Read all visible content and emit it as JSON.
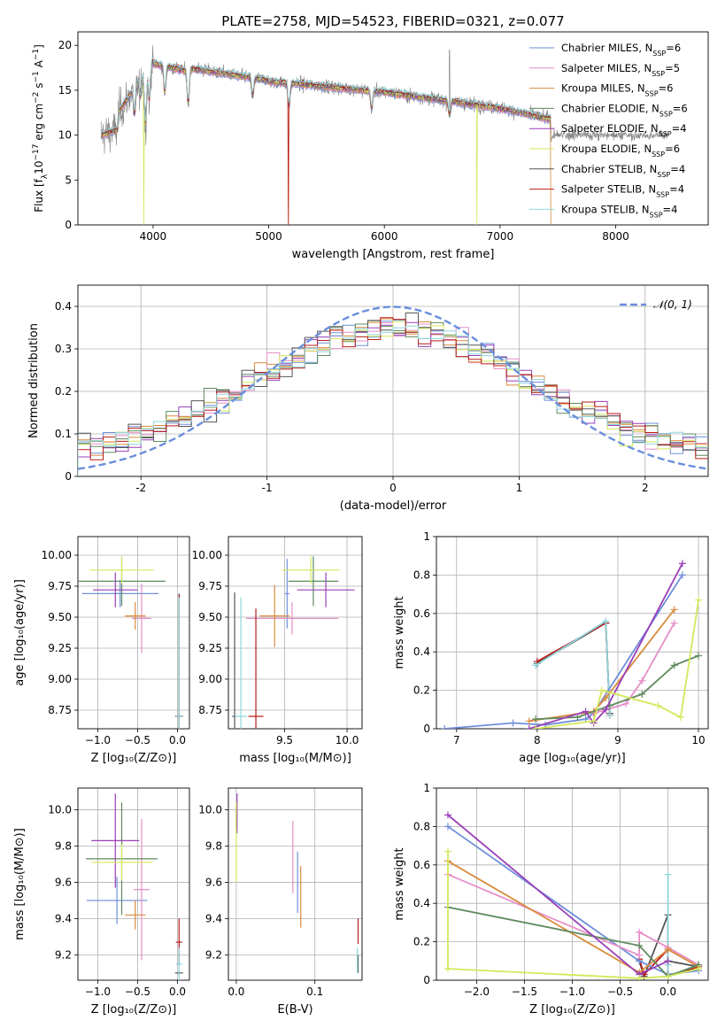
{
  "figure_title": "PLATE=2758, MJD=54523, FIBERID=0321, z=0.077",
  "series": [
    {
      "name": "Chabrier MILES",
      "nssp": "6",
      "color": "#6f8fd9"
    },
    {
      "name": "Salpeter MILES",
      "nssp": "5",
      "color": "#e68fc8"
    },
    {
      "name": "Kroupa MILES",
      "nssp": "6",
      "color": "#d98a3c"
    },
    {
      "name": "Chabrier ELODIE",
      "nssp": "6",
      "color": "#5f8a5f"
    },
    {
      "name": "Salpeter ELODIE",
      "nssp": "4",
      "color": "#9a3fb8"
    },
    {
      "name": "Kroupa ELODIE",
      "nssp": "6",
      "color": "#d4e85a"
    },
    {
      "name": "Chabrier STELIB",
      "nssp": "4",
      "color": "#555555"
    },
    {
      "name": "Salpeter STELIB",
      "nssp": "4",
      "color": "#b81c1c"
    },
    {
      "name": "Kroupa STELIB",
      "nssp": "4",
      "color": "#8fd6dc"
    }
  ],
  "chart_data": [
    {
      "id": "spectrum",
      "type": "line",
      "xlabel": "wavelength [Angstrom, rest frame]",
      "ylabel_main": "Flux [f",
      "ylabel_sub": "λ",
      "ylabel_rest": "10",
      "ylabel_exp": "−17",
      "ylabel_tail": " erg cm",
      "ylabel_exp2": "−2",
      "ylabel_s": " s",
      "ylabel_exp3": "−1",
      "ylabel_A": " A",
      "ylabel_exp4": "−1",
      "ylabel_end": "]",
      "xlim": [
        3350,
        8800
      ],
      "ylim": [
        0,
        21.5
      ],
      "xticks": [
        4000,
        5000,
        6000,
        7000,
        8000
      ],
      "yticks": [
        0,
        5,
        10,
        15,
        20
      ],
      "observed_range": [
        3550,
        8450
      ],
      "model_range": [
        3550,
        7440
      ],
      "legend_loc": "upper right"
    },
    {
      "id": "residuals",
      "type": "histogram",
      "xlabel": "(data-model)/error",
      "ylabel": "Normed distribution",
      "xlim": [
        -2.5,
        2.5
      ],
      "ylim": [
        0,
        0.45
      ],
      "xticks": [
        -2,
        -1,
        0,
        1,
        2
      ],
      "yticks": [
        0.0,
        0.1,
        0.2,
        0.3,
        0.4
      ],
      "bin_width": 0.1,
      "reference_label": "𝒩(0, 1)",
      "reference_color": "#6a8fdd",
      "grid": true
    },
    {
      "id": "age_vs_Z",
      "type": "scatter_errorbar",
      "xlabel": "Z [log₁₀(Z/Z⊙)]",
      "ylabel": "age  [log₁₀(age/yr)]",
      "xlim": [
        -1.25,
        0.15
      ],
      "ylim": [
        8.6,
        10.15
      ],
      "xticks": [
        -1.0,
        -0.5,
        0.0
      ],
      "xticklabels": [
        "−1.0",
        "−0.5",
        "0.0"
      ],
      "yticks": [
        8.75,
        9.0,
        9.25,
        9.5,
        9.75,
        10.0
      ],
      "yticklabels": [
        "8.75",
        "9.00",
        "9.25",
        "9.50",
        "9.75",
        "10.00"
      ],
      "points": [
        {
          "series": 0,
          "x": -0.72,
          "y": 9.69,
          "xerr": 0.48,
          "yerr": 0.11
        },
        {
          "series": 1,
          "x": -0.45,
          "y": 9.49,
          "xerr": 0.12,
          "yerr": 0.28
        },
        {
          "series": 2,
          "x": -0.53,
          "y": 9.51,
          "xerr": 0.13,
          "yerr": 0.11
        },
        {
          "series": 3,
          "x": -0.7,
          "y": 9.79,
          "xerr": 0.55,
          "yerr": 0.2
        },
        {
          "series": 4,
          "x": -0.78,
          "y": 9.72,
          "xerr": 0.28,
          "yerr": 0.14
        },
        {
          "series": 5,
          "x": -0.7,
          "y": 9.88,
          "xerr": 0.4,
          "yerr": 0.11
        },
        {
          "series": 6,
          "x": 0.02,
          "y": 8.7,
          "xerr": 0.05,
          "yerr": 0.99
        },
        {
          "series": 7,
          "x": 0.02,
          "y": 8.7,
          "xerr": 0.03,
          "yerr": 0.98
        },
        {
          "series": 8,
          "x": 0.02,
          "y": 8.7,
          "xerr": 0.04,
          "yerr": 0.96
        }
      ]
    },
    {
      "id": "age_vs_mass",
      "type": "scatter_errorbar",
      "xlabel": "mass [log₁₀(M/M⊙)]",
      "ylabel": "",
      "xlim": [
        9.05,
        10.12
      ],
      "ylim": [
        8.6,
        10.15
      ],
      "xticks": [
        9.5,
        10.0
      ],
      "xticklabels": [
        "9.5",
        "10.0"
      ],
      "yticks": [
        8.75,
        9.0,
        9.25,
        9.5,
        9.75,
        10.0
      ],
      "yticklabels": [
        "8.75",
        "9.00",
        "9.25",
        "9.50",
        "9.75",
        "10.00"
      ],
      "points": [
        {
          "series": 0,
          "x": 9.52,
          "y": 9.69,
          "xerr": 0.02,
          "yerr": 0.28
        },
        {
          "series": 1,
          "x": 9.56,
          "y": 9.49,
          "xerr": 0.37,
          "yerr": 0.13
        },
        {
          "series": 2,
          "x": 9.42,
          "y": 9.51,
          "xerr": 0.12,
          "yerr": 0.25
        },
        {
          "series": 3,
          "x": 9.73,
          "y": 9.79,
          "xerr": 0.2,
          "yerr": 0.2
        },
        {
          "series": 4,
          "x": 9.83,
          "y": 9.72,
          "xerr": 0.23,
          "yerr": 0.14
        },
        {
          "series": 5,
          "x": 9.71,
          "y": 9.88,
          "xerr": 0.23,
          "yerr": 0.11
        },
        {
          "series": 6,
          "x": 9.1,
          "y": 8.7,
          "xerr": 0.02,
          "yerr": 1.0
        },
        {
          "series": 7,
          "x": 9.27,
          "y": 8.7,
          "xerr": 0.06,
          "yerr": 0.87
        },
        {
          "series": 8,
          "x": 9.15,
          "y": 8.7,
          "xerr": 0.05,
          "yerr": 0.96
        }
      ]
    },
    {
      "id": "weight_vs_age",
      "type": "line",
      "xlabel": "age  [log₁₀(age/yr)]",
      "ylabel": "mass weight",
      "xlim": [
        6.75,
        10.12
      ],
      "ylim": [
        0,
        1.0
      ],
      "xticks": [
        7,
        8,
        9,
        10
      ],
      "yticks": [
        0.0,
        0.2,
        0.4,
        0.6,
        0.8,
        1.0
      ],
      "lines": [
        {
          "series": 6,
          "x": [
            8.0,
            8.85,
            8.9
          ],
          "y": [
            0.34,
            0.55,
            0.08
          ]
        },
        {
          "series": 7,
          "x": [
            8.0,
            8.85,
            8.9
          ],
          "y": [
            0.35,
            0.55,
            0.07
          ]
        },
        {
          "series": 8,
          "x": [
            7.98,
            8.85,
            8.9
          ],
          "y": [
            0.33,
            0.56,
            0.07
          ]
        },
        {
          "series": 0,
          "x": [
            6.85,
            7.7,
            8.1,
            8.6,
            8.7,
            9.8
          ],
          "y": [
            0.0,
            0.03,
            0.02,
            0.05,
            0.08,
            0.8
          ]
        },
        {
          "series": 1,
          "x": [
            8.7,
            9.1,
            9.3,
            9.7
          ],
          "y": [
            0.08,
            0.13,
            0.25,
            0.55
          ]
        },
        {
          "series": 2,
          "x": [
            7.9,
            8.7,
            8.85,
            9.7
          ],
          "y": [
            0.04,
            0.09,
            0.16,
            0.62
          ]
        },
        {
          "series": 3,
          "x": [
            7.98,
            8.5,
            8.9,
            9.3,
            9.7,
            10.0
          ],
          "y": [
            0.05,
            0.06,
            0.12,
            0.18,
            0.33,
            0.38
          ]
        },
        {
          "series": 4,
          "x": [
            7.9,
            8.6,
            8.7,
            8.85,
            9.8
          ],
          "y": [
            0.0,
            0.09,
            0.03,
            0.1,
            0.86
          ]
        },
        {
          "series": 5,
          "x": [
            7.98,
            8.7,
            8.8,
            9.5,
            9.78,
            10.0
          ],
          "y": [
            0.0,
            0.04,
            0.2,
            0.12,
            0.06,
            0.67
          ]
        }
      ]
    },
    {
      "id": "mass_vs_Z",
      "type": "scatter_errorbar",
      "xlabel": "Z [log₁₀(Z/Z⊙)]",
      "ylabel": "mass [log₁₀(M/M⊙)]",
      "xlim": [
        -1.25,
        0.15
      ],
      "ylim": [
        9.06,
        10.12
      ],
      "xticks": [
        -1.0,
        -0.5,
        0.0
      ],
      "xticklabels": [
        "−1.0",
        "−0.5",
        "0.0"
      ],
      "yticks": [
        9.2,
        9.4,
        9.6,
        9.8,
        10.0
      ],
      "yticklabels": [
        "9.2",
        "9.4",
        "9.6",
        "9.8",
        "10.0"
      ],
      "points": [
        {
          "series": 0,
          "x": -0.76,
          "y": 9.5,
          "xerr": 0.38,
          "yerr": 0.13
        },
        {
          "series": 1,
          "x": -0.45,
          "y": 9.56,
          "xerr": 0.1,
          "yerr": 0.39
        },
        {
          "series": 2,
          "x": -0.53,
          "y": 9.42,
          "xerr": 0.13,
          "yerr": 0.08
        },
        {
          "series": 3,
          "x": -0.7,
          "y": 9.73,
          "xerr": 0.45,
          "yerr": 0.31
        },
        {
          "series": 4,
          "x": -0.78,
          "y": 9.83,
          "xerr": 0.3,
          "yerr": 0.26
        },
        {
          "series": 5,
          "x": -0.7,
          "y": 9.71,
          "xerr": 0.38,
          "yerr": 0.1
        },
        {
          "series": 6,
          "x": 0.02,
          "y": 9.1,
          "xerr": 0.05,
          "yerr": 0.01
        },
        {
          "series": 7,
          "x": 0.02,
          "y": 9.27,
          "xerr": 0.04,
          "yerr": 0.13
        },
        {
          "series": 8,
          "x": 0.02,
          "y": 9.15,
          "xerr": 0.04,
          "yerr": 0.09
        }
      ]
    },
    {
      "id": "mass_vs_ebv",
      "type": "scatter_errorbar",
      "xlabel": "E(B-V)",
      "ylabel": "",
      "xlim": [
        -0.01,
        0.16
      ],
      "ylim": [
        9.06,
        10.12
      ],
      "xticks": [
        0.0,
        0.1
      ],
      "xticklabels": [
        "0.0",
        "0.1"
      ],
      "yticks": [
        9.2,
        9.4,
        9.6,
        9.8,
        10.0
      ],
      "yticklabels": [
        "9.2",
        "9.4",
        "9.6",
        "9.8",
        "10.0"
      ],
      "points": [
        {
          "series": 0,
          "x": 0.078,
          "y": 9.6,
          "xerr": 0.0,
          "yerr": 0.17
        },
        {
          "series": 1,
          "x": 0.072,
          "y": 9.74,
          "xerr": 0.0,
          "yerr": 0.2
        },
        {
          "series": 2,
          "x": 0.082,
          "y": 9.52,
          "xerr": 0.0,
          "yerr": 0.17
        },
        {
          "series": 3,
          "x": 0.0,
          "y": 9.95,
          "xerr": 0.0,
          "yerr": 0.06
        },
        {
          "series": 4,
          "x": 0.001,
          "y": 9.98,
          "xerr": 0.0,
          "yerr": 0.11
        },
        {
          "series": 5,
          "x": 0.0,
          "y": 9.82,
          "xerr": 0.0,
          "yerr": 0.22
        },
        {
          "series": 6,
          "x": 0.155,
          "y": 9.15,
          "xerr": 0.0,
          "yerr": 0.05
        },
        {
          "series": 7,
          "x": 0.155,
          "y": 9.33,
          "xerr": 0.0,
          "yerr": 0.07
        },
        {
          "series": 8,
          "x": 0.154,
          "y": 9.17,
          "xerr": 0.0,
          "yerr": 0.07
        }
      ]
    },
    {
      "id": "weight_vs_Z",
      "type": "line",
      "xlabel": "Z [log₁₀(Z/Z⊙)]",
      "ylabel": "mass weight",
      "xlim": [
        -2.42,
        0.42
      ],
      "ylim": [
        0,
        1.0
      ],
      "xticks": [
        -2.0,
        -1.5,
        -1.0,
        -0.5,
        0.0
      ],
      "xticklabels": [
        "−2.0",
        "−1.5",
        "−1.0",
        "−0.5",
        "0.0"
      ],
      "yticks": [
        0.0,
        0.2,
        0.4,
        0.6,
        0.8,
        1.0
      ],
      "lines": [
        {
          "series": 6,
          "x": [
            -0.3,
            -0.25,
            0.0,
            0.0,
            0.32
          ],
          "y": [
            0.1,
            0.02,
            0.34,
            0.1,
            0.07
          ]
        },
        {
          "series": 7,
          "x": [
            -0.3,
            -0.25,
            0.0,
            0.0,
            0.32
          ],
          "y": [
            0.11,
            0.03,
            0.16,
            0.02,
            0.07
          ]
        },
        {
          "series": 8,
          "x": [
            0.0,
            0.0,
            0.0,
            0.32
          ],
          "y": [
            0.55,
            0.08,
            0.02,
            0.08
          ]
        },
        {
          "series": 0,
          "x": [
            -2.3,
            -0.3,
            0.0,
            0.32
          ],
          "y": [
            0.8,
            0.1,
            0.03,
            0.05
          ]
        },
        {
          "series": 1,
          "x": [
            -2.3,
            -0.3,
            -0.3,
            0.0,
            0.32
          ],
          "y": [
            0.55,
            0.13,
            0.25,
            0.17,
            0.08
          ]
        },
        {
          "series": 2,
          "x": [
            -2.3,
            -0.3,
            0.0,
            0.32
          ],
          "y": [
            0.62,
            0.04,
            0.16,
            0.07
          ]
        },
        {
          "series": 3,
          "x": [
            -2.3,
            -0.3,
            0.0,
            0.32
          ],
          "y": [
            0.38,
            0.18,
            0.02,
            0.08
          ]
        },
        {
          "series": 4,
          "x": [
            -2.3,
            -0.3,
            0.0
          ],
          "y": [
            0.86,
            0.03,
            0.1
          ]
        },
        {
          "series": 5,
          "x": [
            -2.3,
            -2.3,
            -0.3,
            0.0,
            0.32
          ],
          "y": [
            0.67,
            0.06,
            0.01,
            0.02,
            0.06
          ]
        }
      ]
    }
  ]
}
